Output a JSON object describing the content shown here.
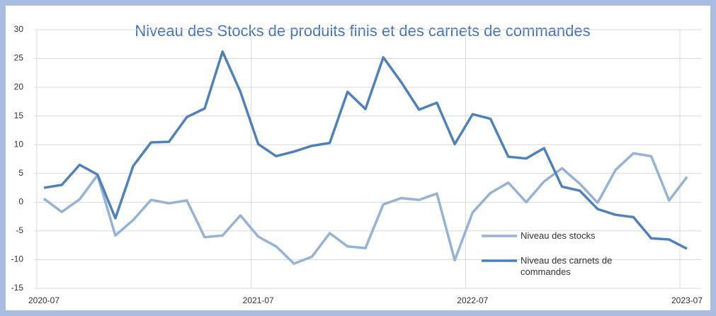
{
  "chart_data": {
    "type": "line",
    "title": "Niveau des Stocks de produits finis et des carnets de commandes",
    "categories": [
      "2020-07",
      null,
      null,
      null,
      null,
      null,
      null,
      null,
      null,
      null,
      null,
      null,
      "2021-07",
      null,
      null,
      null,
      null,
      null,
      null,
      null,
      null,
      null,
      null,
      null,
      "2022-07",
      null,
      null,
      null,
      null,
      null,
      null,
      null,
      null,
      null,
      null,
      null,
      "2023-07"
    ],
    "series": [
      {
        "name": "Niveau des stocks",
        "color": "#95b3d7",
        "values": [
          0.6,
          -1.7,
          0.5,
          4.7,
          -5.8,
          -3.1,
          0.4,
          -0.2,
          0.3,
          -6.1,
          -5.8,
          -2.3,
          -6.0,
          -7.7,
          -10.7,
          -9.5,
          -5.4,
          -7.7,
          -8.0,
          -0.4,
          0.7,
          0.4,
          1.5,
          -10.1,
          -1.8,
          1.6,
          3.4,
          0.0,
          3.6,
          5.9,
          3.2,
          -0.1,
          5.6,
          8.5,
          8.0,
          0.3,
          4.4
        ]
      },
      {
        "name": "Niveau des carnets de commandes",
        "color": "#4f81bd",
        "values": [
          2.5,
          3.0,
          6.5,
          4.8,
          -2.8,
          6.3,
          10.4,
          10.5,
          14.8,
          16.3,
          26.2,
          19.2,
          10.1,
          8.0,
          8.8,
          9.8,
          10.3,
          19.2,
          16.2,
          25.2,
          20.9,
          16.1,
          17.3,
          10.1,
          15.3,
          14.5,
          7.9,
          7.6,
          9.4,
          2.7,
          2.0,
          -1.2,
          -2.2,
          -2.6,
          -6.3,
          -6.5,
          -8.1
        ]
      }
    ],
    "ylim": [
      -15,
      30
    ],
    "yticks": [
      -15,
      -10,
      -5,
      0,
      5,
      10,
      15,
      20,
      25,
      30
    ],
    "grid": true
  }
}
